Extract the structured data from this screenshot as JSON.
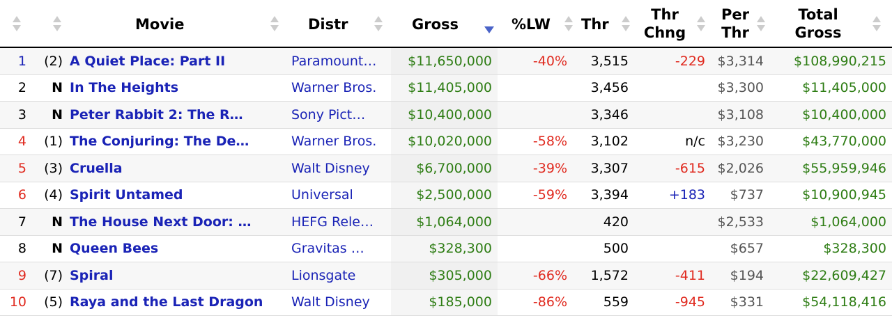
{
  "headers": {
    "movie": "Movie",
    "distr": "Distr",
    "gross": "Gross",
    "pct_lw": "%LW",
    "thr": "Thr",
    "thr_chng_1": "Thr",
    "thr_chng_2": "Chng",
    "per_thr_1": "Per",
    "per_thr_2": "Thr",
    "total_1": "Total",
    "total_2": "Gross"
  },
  "colors": {
    "movie_link": "#1a23b6",
    "gross_green": "#2e7d14",
    "decline_red": "#e02a1f",
    "rank_new_blue": "#1a23b6",
    "sort_active": "#4a63c8"
  },
  "rows": [
    {
      "rank": "1",
      "lw": "(2)",
      "movie": "A Quiet Place: Part II",
      "distr": "Paramount…",
      "gross": "$11,650,000",
      "pct_lw": "-40%",
      "thr": "3,515",
      "thr_chng": "-229",
      "per_thr": "$3,314",
      "total": "$108,990,215"
    },
    {
      "rank": "2",
      "lw": "N",
      "movie": "In The Heights",
      "distr": "Warner Bros.",
      "gross": "$11,405,000",
      "pct_lw": "",
      "thr": "3,456",
      "thr_chng": "",
      "per_thr": "$3,300",
      "total": "$11,405,000"
    },
    {
      "rank": "3",
      "lw": "N",
      "movie": "Peter Rabbit 2: The R…",
      "distr": "Sony Pict…",
      "gross": "$10,400,000",
      "pct_lw": "",
      "thr": "3,346",
      "thr_chng": "",
      "per_thr": "$3,108",
      "total": "$10,400,000"
    },
    {
      "rank": "4",
      "lw": "(1)",
      "movie": "The Conjuring: The De…",
      "distr": "Warner Bros.",
      "gross": "$10,020,000",
      "pct_lw": "-58%",
      "thr": "3,102",
      "thr_chng": "n/c",
      "per_thr": "$3,230",
      "total": "$43,770,000"
    },
    {
      "rank": "5",
      "lw": "(3)",
      "movie": "Cruella",
      "distr": "Walt Disney",
      "gross": "$6,700,000",
      "pct_lw": "-39%",
      "thr": "3,307",
      "thr_chng": "-615",
      "per_thr": "$2,026",
      "total": "$55,959,946"
    },
    {
      "rank": "6",
      "lw": "(4)",
      "movie": "Spirit Untamed",
      "distr": "Universal",
      "gross": "$2,500,000",
      "pct_lw": "-59%",
      "thr": "3,394",
      "thr_chng": "+183",
      "per_thr": "$737",
      "total": "$10,900,945"
    },
    {
      "rank": "7",
      "lw": "N",
      "movie": "The House Next Door: …",
      "distr": "HEFG Rele…",
      "gross": "$1,064,000",
      "pct_lw": "",
      "thr": "420",
      "thr_chng": "",
      "per_thr": "$2,533",
      "total": "$1,064,000"
    },
    {
      "rank": "8",
      "lw": "N",
      "movie": "Queen Bees",
      "distr": "Gravitas …",
      "gross": "$328,300",
      "pct_lw": "",
      "thr": "500",
      "thr_chng": "",
      "per_thr": "$657",
      "total": "$328,300"
    },
    {
      "rank": "9",
      "lw": "(7)",
      "movie": "Spiral",
      "distr": "Lionsgate",
      "gross": "$305,000",
      "pct_lw": "-66%",
      "thr": "1,572",
      "thr_chng": "-411",
      "per_thr": "$194",
      "total": "$22,609,427"
    },
    {
      "rank": "10",
      "lw": "(5)",
      "movie": "Raya and the Last Dragon",
      "distr": "Walt Disney",
      "gross": "$185,000",
      "pct_lw": "-86%",
      "thr": "559",
      "thr_chng": "-945",
      "per_thr": "$331",
      "total": "$54,118,416"
    }
  ]
}
